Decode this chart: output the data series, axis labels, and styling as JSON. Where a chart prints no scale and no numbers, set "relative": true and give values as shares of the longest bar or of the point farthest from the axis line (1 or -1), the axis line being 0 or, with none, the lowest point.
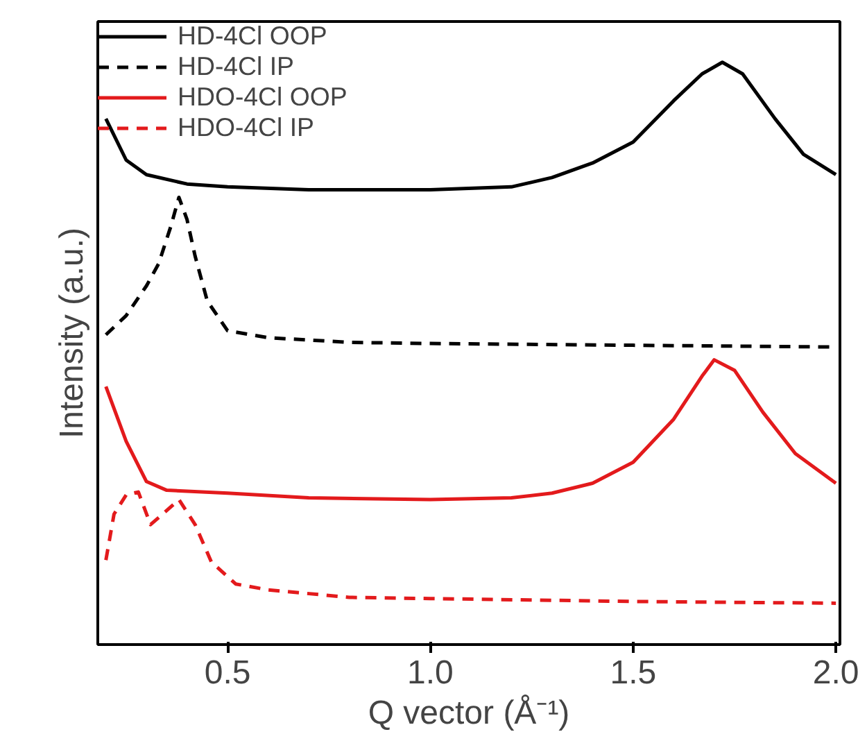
{
  "chart_data": {
    "type": "line",
    "relative": true,
    "xlabel": "Q vector (Å⁻¹)",
    "ylabel": "Intensity (a.u.)",
    "xlim": [
      0.18,
      2.01
    ],
    "xticks": [
      0.5,
      {
        "value": 1.0,
        "label": "1.0"
      },
      1.5,
      {
        "value": 2.0,
        "label": "2.0"
      }
    ],
    "grid": false,
    "legend": "top left",
    "marker": "none",
    "series": [
      {
        "name": "HD-4Cl OOP",
        "color": "#000000",
        "line_style": "solid",
        "x": [
          0.2,
          0.25,
          0.3,
          0.4,
          0.5,
          0.7,
          1.0,
          1.2,
          1.3,
          1.4,
          1.5,
          1.6,
          1.67,
          1.72,
          1.77,
          1.85,
          1.92,
          2.0
        ],
        "values": [
          0.903,
          0.832,
          0.807,
          0.791,
          0.786,
          0.781,
          0.781,
          0.786,
          0.802,
          0.827,
          0.863,
          0.934,
          0.98,
          1.0,
          0.98,
          0.903,
          0.842,
          0.807
        ]
      },
      {
        "name": "HD-4Cl IP",
        "color": "#000000",
        "line_style": "dashed",
        "x": [
          0.2,
          0.25,
          0.3,
          0.33,
          0.36,
          0.38,
          0.4,
          0.42,
          0.45,
          0.5,
          0.6,
          0.8,
          1.0,
          1.5,
          2.0
        ],
        "values": [
          0.532,
          0.565,
          0.616,
          0.654,
          0.718,
          0.768,
          0.73,
          0.667,
          0.59,
          0.539,
          0.527,
          0.519,
          0.517,
          0.514,
          0.511
        ]
      },
      {
        "name": "HDO-4Cl OOP",
        "color": "#e31a1c",
        "line_style": "solid",
        "x": [
          0.2,
          0.25,
          0.3,
          0.35,
          0.5,
          0.7,
          1.0,
          1.2,
          1.3,
          1.4,
          1.5,
          1.6,
          1.67,
          1.7,
          1.75,
          1.82,
          1.9,
          2.0
        ],
        "values": [
          0.443,
          0.349,
          0.28,
          0.265,
          0.26,
          0.252,
          0.249,
          0.252,
          0.26,
          0.277,
          0.313,
          0.387,
          0.461,
          0.489,
          0.471,
          0.399,
          0.328,
          0.277
        ]
      },
      {
        "name": "HDO-4Cl IP",
        "color": "#e31a1c",
        "line_style": "dashed",
        "x": [
          0.2,
          0.22,
          0.25,
          0.28,
          0.31,
          0.34,
          0.38,
          0.42,
          0.46,
          0.52,
          0.6,
          0.8,
          1.0,
          1.5,
          2.0
        ],
        "values": [
          0.145,
          0.224,
          0.257,
          0.262,
          0.206,
          0.224,
          0.249,
          0.206,
          0.142,
          0.104,
          0.094,
          0.081,
          0.079,
          0.074,
          0.071
        ]
      }
    ]
  }
}
